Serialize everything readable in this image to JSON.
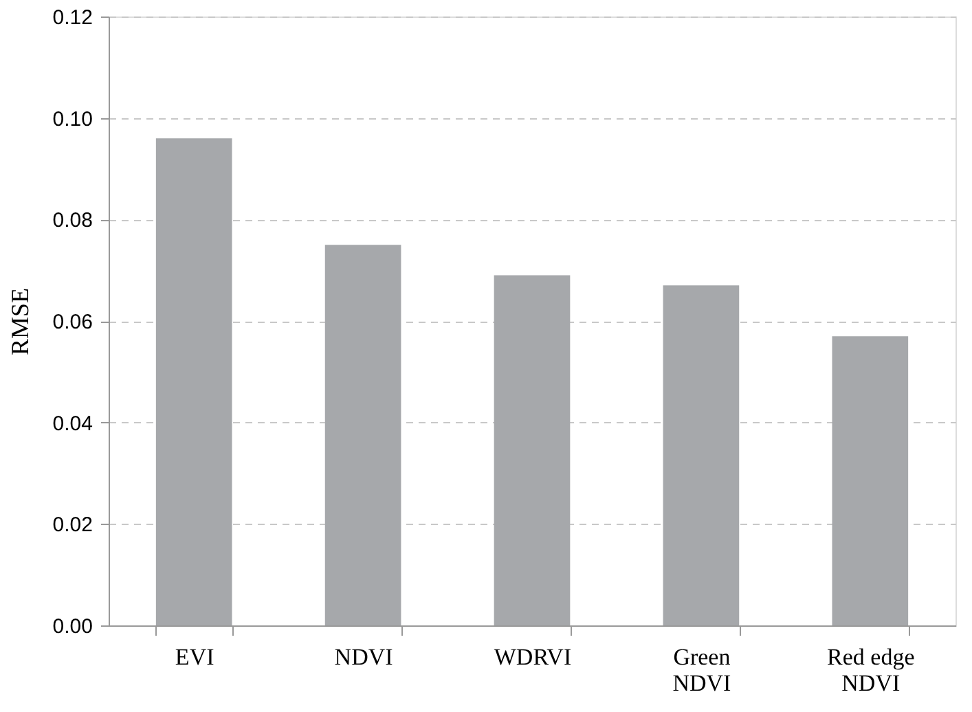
{
  "chart_data": {
    "type": "bar",
    "ylabel": "RMSE",
    "categories": [
      "EVI",
      "NDVI",
      "WDRVI",
      "Green\nNDVI",
      "Red edge\nNDVI"
    ],
    "values": [
      0.096,
      0.075,
      0.069,
      0.067,
      0.057
    ],
    "color": "#a6a8ab",
    "ylim": [
      0,
      0.12
    ],
    "yticks": [
      {
        "value": 0,
        "label": "0.00"
      },
      {
        "value": 0.02,
        "label": "0.02"
      },
      {
        "value": 0.04,
        "label": "0.04"
      },
      {
        "value": 0.06,
        "label": "0.06"
      },
      {
        "value": 0.08,
        "label": "0.08"
      },
      {
        "value": 0.1,
        "label": "0.10"
      },
      {
        "value": 0.12,
        "label": "0.12"
      }
    ],
    "grid": "y"
  }
}
